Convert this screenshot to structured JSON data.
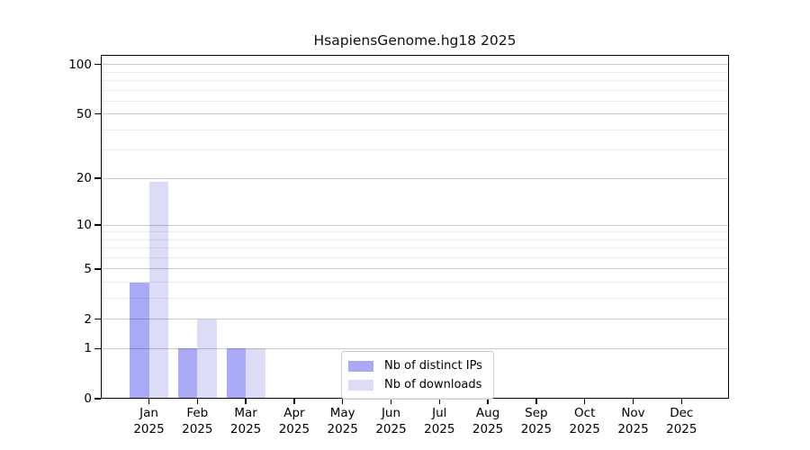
{
  "chart_data": {
    "type": "bar",
    "title": "HsapiensGenome.hg18 2025",
    "categories": [
      "Jan",
      "Feb",
      "Mar",
      "Apr",
      "May",
      "Jun",
      "Jul",
      "Aug",
      "Sep",
      "Oct",
      "Nov",
      "Dec"
    ],
    "x_axis": {
      "year_label": "2025"
    },
    "series": [
      {
        "name": "Nb of distinct IPs",
        "color": "#a9a9f6",
        "values": [
          4,
          1,
          1,
          0,
          0,
          0,
          0,
          0,
          0,
          0,
          0,
          0
        ]
      },
      {
        "name": "Nb of downloads",
        "color": "#dcdcf7",
        "values": [
          19,
          2,
          1,
          0,
          0,
          0,
          0,
          0,
          0,
          0,
          0,
          0
        ]
      }
    ],
    "y_axis": {
      "scale": "log1p",
      "tick_values": [
        0,
        1,
        2,
        5,
        10,
        20,
        50,
        100
      ],
      "minor_gridline_values": [
        3,
        4,
        6,
        7,
        8,
        9,
        30,
        40,
        60,
        70,
        80,
        90
      ],
      "ylim": [
        0,
        114
      ]
    },
    "grid": "horizontal",
    "legend": {
      "position": "inside-bottom-center",
      "entries": [
        "Nb of distinct IPs",
        "Nb of downloads"
      ]
    }
  }
}
